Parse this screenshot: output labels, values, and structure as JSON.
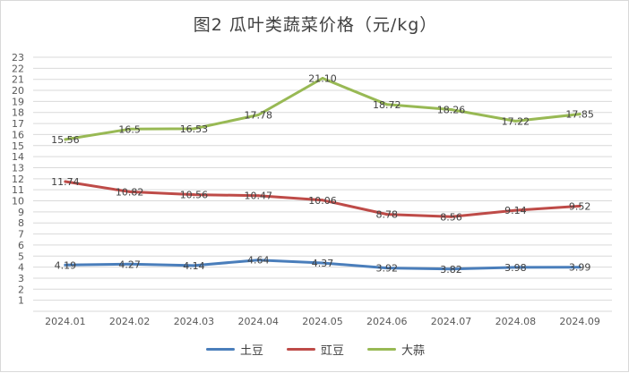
{
  "chart_data": {
    "type": "line",
    "title": "图2  瓜叶类蔬菜价格（元/kg）",
    "xlabel": "",
    "ylabel": "",
    "categories": [
      "2024.01",
      "2024.02",
      "2024.03",
      "2024.04",
      "2024.05",
      "2024.06",
      "2024.07",
      "2024.08",
      "2024.09"
    ],
    "ylim": [
      0,
      23
    ],
    "yticks": [
      "1",
      "2",
      "3",
      "4",
      "5",
      "6",
      "7",
      "8",
      "9",
      "10",
      "11",
      "12",
      "13",
      "14",
      "15",
      "16",
      "17",
      "18",
      "19",
      "20",
      "21",
      "22",
      "23"
    ],
    "grid": true,
    "legend_position": "bottom",
    "series": [
      {
        "name": "土豆",
        "color": "#4a7ebb",
        "values": [
          4.19,
          4.27,
          4.14,
          4.64,
          4.37,
          3.92,
          3.82,
          3.98,
          3.99
        ],
        "labels": [
          "4.19",
          "4.27",
          "4.14",
          "4.64",
          "4.37",
          "3.92",
          "3.82",
          "3.98",
          "3.99"
        ]
      },
      {
        "name": "豇豆",
        "color": "#be4b48",
        "values": [
          11.74,
          10.82,
          10.56,
          10.47,
          10.06,
          8.78,
          8.56,
          9.14,
          9.52
        ],
        "labels": [
          "11.74",
          "10.82",
          "10.56",
          "10.47",
          "10.06",
          "8.78",
          "8.56",
          "9.14",
          "9.52"
        ]
      },
      {
        "name": "大蒜",
        "color": "#98b954",
        "values": [
          15.56,
          16.5,
          16.53,
          17.78,
          21.1,
          18.72,
          18.26,
          17.22,
          17.85
        ],
        "labels": [
          "15.56",
          "16.5",
          "16.53",
          "17.78",
          "21.10",
          "18.72",
          "18.26",
          "17.22",
          "17.85"
        ]
      }
    ]
  }
}
